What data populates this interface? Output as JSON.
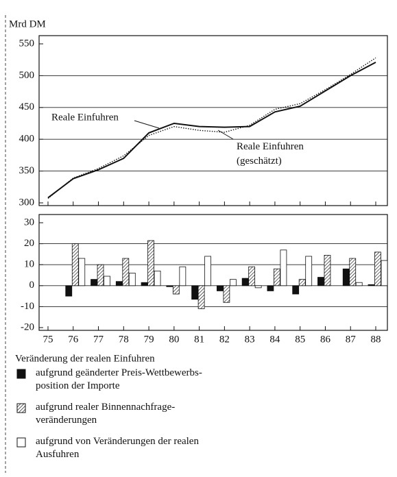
{
  "chart_data": [
    {
      "type": "line",
      "ylabel": "Mrd DM",
      "categories": [
        "75",
        "76",
        "77",
        "78",
        "79",
        "80",
        "81",
        "82",
        "83",
        "84",
        "85",
        "86",
        "87",
        "88"
      ],
      "series": [
        {
          "name": "Reale Einfuhren",
          "color": "#111111",
          "style": "solid",
          "values": [
            308,
            338,
            352,
            370,
            410,
            425,
            420,
            419,
            420,
            443,
            452,
            476,
            500,
            521
          ]
        },
        {
          "name": "Reale Einfuhren\n(geschätzt)",
          "color": "#111111",
          "style": "dotted",
          "values": [
            307,
            339,
            354,
            374,
            406,
            420,
            414,
            411,
            422,
            447,
            456,
            478,
            502,
            528
          ]
        }
      ],
      "ylim": [
        300,
        550
      ],
      "yticks": [
        300,
        350,
        400,
        450,
        500,
        550
      ],
      "grid": true
    },
    {
      "type": "bar",
      "categories": [
        "75",
        "76",
        "77",
        "78",
        "79",
        "80",
        "81",
        "82",
        "83",
        "84",
        "85",
        "86",
        "87",
        "88"
      ],
      "legend_title": "Veränderung der realen Einfuhren",
      "series": [
        {
          "name": "aufgrund geänderter Preis-Wettbewerbs-\nposition der Importe",
          "color": "#111111",
          "values": [
            null,
            -5,
            3,
            2,
            1.5,
            -0.5,
            -6.5,
            -2.5,
            3.5,
            -2.5,
            -4,
            4,
            8,
            0.5
          ]
        },
        {
          "name": "aufgrund realer Binnennachfrage-\nveränderungen",
          "color": "hatched",
          "values": [
            null,
            20,
            10,
            13,
            21.5,
            -4,
            -11,
            -8,
            9,
            8,
            3,
            14.5,
            13,
            16
          ]
        },
        {
          "name": "aufgrund von Veränderungen der realen\nAusfuhren",
          "color": "#ffffff",
          "values": [
            null,
            13,
            4.5,
            6,
            7,
            9,
            14,
            3,
            -1,
            17,
            14,
            0,
            1.5,
            12
          ]
        }
      ],
      "ylim": [
        -20,
        30
      ],
      "yticks": [
        -20,
        -10,
        0,
        10,
        20,
        30
      ],
      "grid": true
    }
  ]
}
